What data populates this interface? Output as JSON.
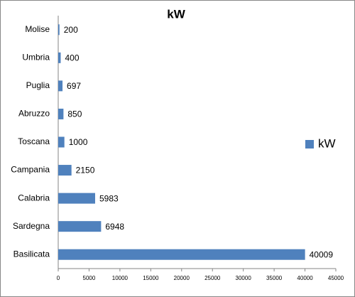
{
  "chart_data": {
    "type": "bar",
    "title": "kW",
    "categories": [
      "Molise",
      "Umbria",
      "Puglia",
      "Abruzzo",
      "Toscana",
      "Campania",
      "Calabria",
      "Sardegna",
      "Basilicata"
    ],
    "series": [
      {
        "name": "kW",
        "color": "#4f81bd",
        "values": [
          200,
          400,
          697,
          850,
          1000,
          2150,
          5983,
          6948,
          40009
        ]
      }
    ],
    "xlim": [
      0,
      45000
    ],
    "xticks": [
      0,
      5000,
      10000,
      15000,
      20000,
      25000,
      30000,
      35000,
      40000,
      45000
    ],
    "legend": "right"
  }
}
